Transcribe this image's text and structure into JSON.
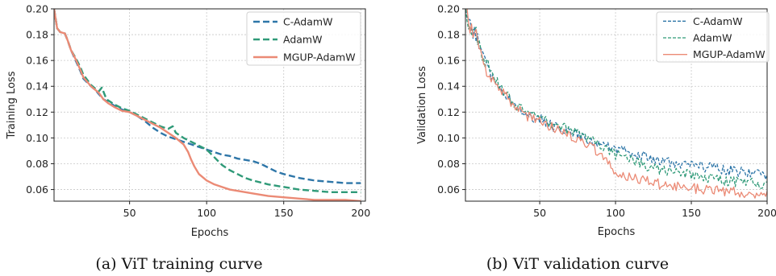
{
  "colors": {
    "c_adamw": "#2e76a8",
    "adamw": "#2f9a78",
    "mgup": "#eb8a75",
    "grid": "#c8c8c8",
    "axis": "#222222"
  },
  "chart_data": [
    {
      "type": "line",
      "caption": "(a) ViT training curve",
      "xlabel": "Epochs",
      "ylabel": "Training Loss",
      "xlim": [
        1,
        203
      ],
      "ylim": [
        0.051,
        0.2
      ],
      "xticks": [
        50,
        100,
        150,
        200
      ],
      "yticks": [
        0.06,
        0.08,
        0.1,
        0.12,
        0.14,
        0.16,
        0.18,
        0.2
      ],
      "ytick_labels": [
        "0.06",
        "0.08",
        "0.10",
        "0.12",
        "0.14",
        "0.16",
        "0.18",
        "0.20"
      ],
      "grid": true,
      "legend_position": "top-right",
      "line_style": "thick",
      "series": [
        {
          "name": "C-AdamW",
          "style": "dashed",
          "points": [
            [
              1,
              0.2
            ],
            [
              3,
              0.185
            ],
            [
              5,
              0.182
            ],
            [
              8,
              0.181
            ],
            [
              10,
              0.175
            ],
            [
              12,
              0.168
            ],
            [
              15,
              0.16
            ],
            [
              18,
              0.152
            ],
            [
              20,
              0.146
            ],
            [
              25,
              0.14
            ],
            [
              28,
              0.137
            ],
            [
              30,
              0.134
            ],
            [
              33,
              0.13
            ],
            [
              36,
              0.128
            ],
            [
              40,
              0.125
            ],
            [
              45,
              0.122
            ],
            [
              50,
              0.12
            ],
            [
              55,
              0.117
            ],
            [
              60,
              0.113
            ],
            [
              65,
              0.108
            ],
            [
              70,
              0.104
            ],
            [
              75,
              0.101
            ],
            [
              80,
              0.099
            ],
            [
              85,
              0.097
            ],
            [
              90,
              0.095
            ],
            [
              95,
              0.093
            ],
            [
              100,
              0.091
            ],
            [
              105,
              0.089
            ],
            [
              110,
              0.087
            ],
            [
              115,
              0.086
            ],
            [
              120,
              0.084
            ],
            [
              125,
              0.083
            ],
            [
              130,
              0.082
            ],
            [
              135,
              0.08
            ],
            [
              140,
              0.077
            ],
            [
              145,
              0.074
            ],
            [
              150,
              0.072
            ],
            [
              160,
              0.069
            ],
            [
              170,
              0.067
            ],
            [
              180,
              0.066
            ],
            [
              190,
              0.065
            ],
            [
              200,
              0.065
            ]
          ]
        },
        {
          "name": "AdamW",
          "style": "dashed",
          "points": [
            [
              1,
              0.2
            ],
            [
              3,
              0.185
            ],
            [
              5,
              0.182
            ],
            [
              8,
              0.181
            ],
            [
              10,
              0.175
            ],
            [
              12,
              0.168
            ],
            [
              15,
              0.162
            ],
            [
              18,
              0.155
            ],
            [
              20,
              0.149
            ],
            [
              25,
              0.141
            ],
            [
              28,
              0.138
            ],
            [
              30,
              0.136
            ],
            [
              32,
              0.139
            ],
            [
              35,
              0.13
            ],
            [
              40,
              0.126
            ],
            [
              45,
              0.123
            ],
            [
              50,
              0.121
            ],
            [
              55,
              0.118
            ],
            [
              60,
              0.115
            ],
            [
              65,
              0.112
            ],
            [
              70,
              0.109
            ],
            [
              75,
              0.107
            ],
            [
              78,
              0.109
            ],
            [
              80,
              0.104
            ],
            [
              85,
              0.1
            ],
            [
              90,
              0.097
            ],
            [
              95,
              0.094
            ],
            [
              100,
              0.091
            ],
            [
              105,
              0.085
            ],
            [
              110,
              0.079
            ],
            [
              115,
              0.075
            ],
            [
              120,
              0.072
            ],
            [
              125,
              0.069
            ],
            [
              130,
              0.067
            ],
            [
              140,
              0.064
            ],
            [
              150,
              0.062
            ],
            [
              160,
              0.06
            ],
            [
              170,
              0.059
            ],
            [
              180,
              0.058
            ],
            [
              190,
              0.058
            ],
            [
              200,
              0.058
            ]
          ]
        },
        {
          "name": "MGUP-AdamW",
          "style": "solid",
          "points": [
            [
              1,
              0.2
            ],
            [
              3,
              0.185
            ],
            [
              5,
              0.182
            ],
            [
              8,
              0.181
            ],
            [
              10,
              0.175
            ],
            [
              12,
              0.168
            ],
            [
              15,
              0.161
            ],
            [
              18,
              0.153
            ],
            [
              20,
              0.147
            ],
            [
              25,
              0.14
            ],
            [
              28,
              0.137
            ],
            [
              30,
              0.135
            ],
            [
              33,
              0.13
            ],
            [
              36,
              0.127
            ],
            [
              40,
              0.124
            ],
            [
              45,
              0.121
            ],
            [
              50,
              0.12
            ],
            [
              55,
              0.117
            ],
            [
              60,
              0.114
            ],
            [
              65,
              0.111
            ],
            [
              70,
              0.108
            ],
            [
              75,
              0.104
            ],
            [
              80,
              0.1
            ],
            [
              85,
              0.095
            ],
            [
              88,
              0.089
            ],
            [
              90,
              0.083
            ],
            [
              92,
              0.078
            ],
            [
              95,
              0.072
            ],
            [
              100,
              0.067
            ],
            [
              105,
              0.064
            ],
            [
              110,
              0.062
            ],
            [
              115,
              0.06
            ],
            [
              120,
              0.059
            ],
            [
              130,
              0.057
            ],
            [
              140,
              0.055
            ],
            [
              150,
              0.054
            ],
            [
              160,
              0.053
            ],
            [
              170,
              0.052
            ],
            [
              180,
              0.052
            ],
            [
              190,
              0.052
            ],
            [
              200,
              0.051
            ]
          ]
        }
      ]
    },
    {
      "type": "line",
      "caption": "(b) ViT validation curve",
      "xlabel": "Epochs",
      "ylabel": "Validation Loss",
      "xlim": [
        1,
        200
      ],
      "ylim": [
        0.051,
        0.2
      ],
      "xticks": [
        50,
        100,
        150,
        200
      ],
      "yticks": [
        0.06,
        0.08,
        0.1,
        0.12,
        0.14,
        0.16,
        0.18,
        0.2
      ],
      "ytick_labels": [
        "0.06",
        "0.08",
        "0.10",
        "0.12",
        "0.14",
        "0.16",
        "0.18",
        "0.20"
      ],
      "grid": true,
      "legend_position": "top-right",
      "line_style": "thin",
      "noise_amplitude": 0.004,
      "series": [
        {
          "name": "C-AdamW",
          "style": "dashed",
          "points": [
            [
              1,
              0.2
            ],
            [
              3,
              0.19
            ],
            [
              5,
              0.185
            ],
            [
              8,
              0.18
            ],
            [
              10,
              0.172
            ],
            [
              12,
              0.165
            ],
            [
              15,
              0.155
            ],
            [
              18,
              0.148
            ],
            [
              20,
              0.145
            ],
            [
              25,
              0.137
            ],
            [
              30,
              0.13
            ],
            [
              35,
              0.124
            ],
            [
              40,
              0.119
            ],
            [
              45,
              0.116
            ],
            [
              50,
              0.115
            ],
            [
              55,
              0.111
            ],
            [
              60,
              0.108
            ],
            [
              65,
              0.107
            ],
            [
              70,
              0.105
            ],
            [
              75,
              0.103
            ],
            [
              80,
              0.1
            ],
            [
              85,
              0.097
            ],
            [
              90,
              0.095
            ],
            [
              95,
              0.093
            ],
            [
              100,
              0.091
            ],
            [
              110,
              0.088
            ],
            [
              120,
              0.085
            ],
            [
              130,
              0.082
            ],
            [
              140,
              0.08
            ],
            [
              150,
              0.079
            ],
            [
              160,
              0.077
            ],
            [
              170,
              0.076
            ],
            [
              180,
              0.074
            ],
            [
              190,
              0.073
            ],
            [
              200,
              0.071
            ]
          ]
        },
        {
          "name": "AdamW",
          "style": "dashed",
          "points": [
            [
              1,
              0.2
            ],
            [
              3,
              0.19
            ],
            [
              5,
              0.185
            ],
            [
              8,
              0.18
            ],
            [
              10,
              0.172
            ],
            [
              12,
              0.165
            ],
            [
              15,
              0.156
            ],
            [
              18,
              0.149
            ],
            [
              20,
              0.146
            ],
            [
              25,
              0.138
            ],
            [
              30,
              0.131
            ],
            [
              35,
              0.125
            ],
            [
              40,
              0.12
            ],
            [
              45,
              0.117
            ],
            [
              50,
              0.116
            ],
            [
              55,
              0.112
            ],
            [
              60,
              0.109
            ],
            [
              65,
              0.108
            ],
            [
              70,
              0.106
            ],
            [
              75,
              0.104
            ],
            [
              80,
              0.101
            ],
            [
              85,
              0.098
            ],
            [
              90,
              0.095
            ],
            [
              95,
              0.091
            ],
            [
              100,
              0.087
            ],
            [
              110,
              0.083
            ],
            [
              120,
              0.078
            ],
            [
              130,
              0.075
            ],
            [
              140,
              0.073
            ],
            [
              150,
              0.071
            ],
            [
              160,
              0.069
            ],
            [
              170,
              0.067
            ],
            [
              180,
              0.066
            ],
            [
              190,
              0.065
            ],
            [
              200,
              0.064
            ]
          ]
        },
        {
          "name": "MGUP-AdamW",
          "style": "solid",
          "points": [
            [
              1,
              0.2
            ],
            [
              3,
              0.19
            ],
            [
              5,
              0.185
            ],
            [
              8,
              0.18
            ],
            [
              10,
              0.171
            ],
            [
              12,
              0.163
            ],
            [
              15,
              0.154
            ],
            [
              18,
              0.147
            ],
            [
              20,
              0.144
            ],
            [
              25,
              0.136
            ],
            [
              30,
              0.129
            ],
            [
              35,
              0.123
            ],
            [
              40,
              0.118
            ],
            [
              45,
              0.115
            ],
            [
              50,
              0.114
            ],
            [
              55,
              0.11
            ],
            [
              60,
              0.107
            ],
            [
              65,
              0.105
            ],
            [
              70,
              0.102
            ],
            [
              75,
              0.1
            ],
            [
              80,
              0.097
            ],
            [
              85,
              0.093
            ],
            [
              90,
              0.087
            ],
            [
              95,
              0.08
            ],
            [
              100,
              0.074
            ],
            [
              105,
              0.071
            ],
            [
              110,
              0.069
            ],
            [
              120,
              0.067
            ],
            [
              130,
              0.064
            ],
            [
              140,
              0.062
            ],
            [
              150,
              0.061
            ],
            [
              160,
              0.06
            ],
            [
              170,
              0.059
            ],
            [
              180,
              0.058
            ],
            [
              190,
              0.057
            ],
            [
              200,
              0.056
            ]
          ]
        }
      ]
    }
  ]
}
